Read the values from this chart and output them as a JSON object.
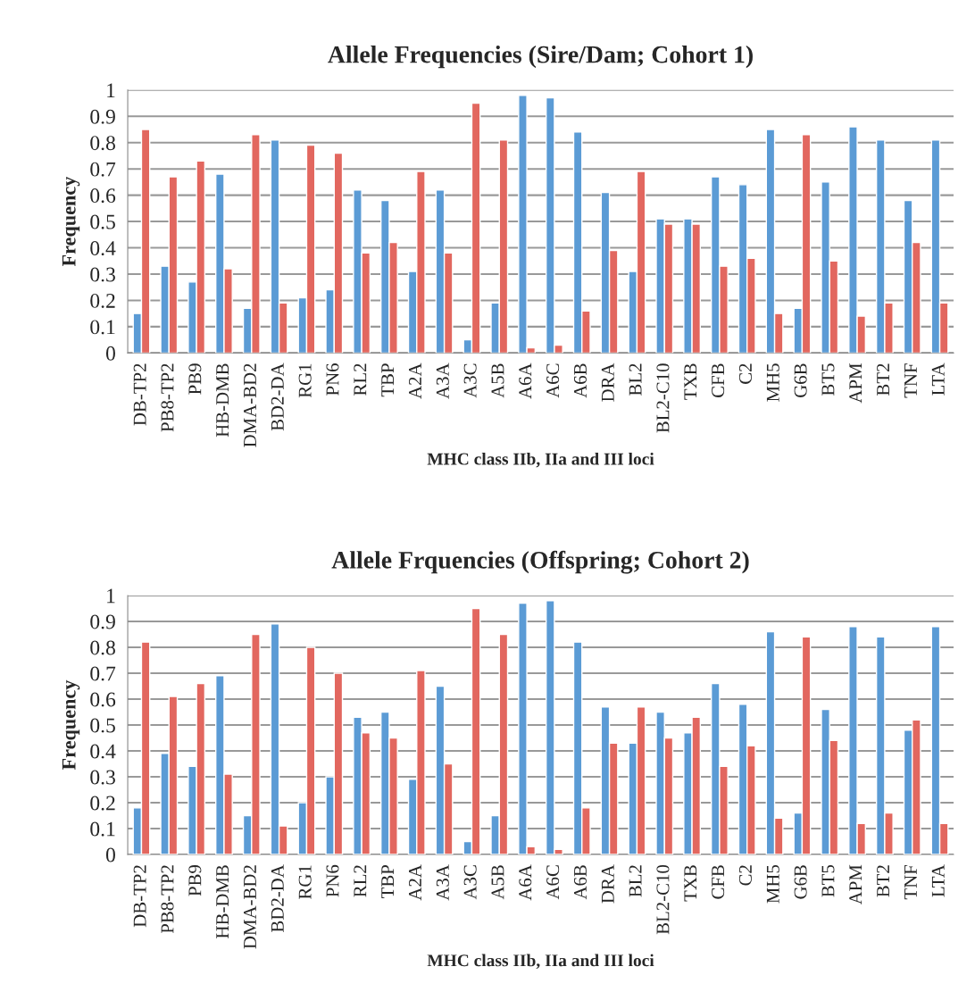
{
  "chart_data": [
    {
      "type": "bar",
      "title": "Allele Frequencies (Sire/Dam; Cohort 1)",
      "xlabel": "MHC class IIb, IIa and III loci",
      "ylabel": "Frequency",
      "categories": [
        "DB-TP2",
        "PB8-TP2",
        "PB9",
        "HB-DMB",
        "DMA-BD2",
        "BD2-DA",
        "RG1",
        "PN6",
        "RL2",
        "TBP",
        "A2A",
        "A3A",
        "A3C",
        "A5B",
        "A6A",
        "A6C",
        "A6B",
        "DRA",
        "BL2",
        "BL2-C10",
        "TXB",
        "CFB",
        "C2",
        "MH5",
        "G6B",
        "BT5",
        "APM",
        "BT2",
        "TNF",
        "LTA"
      ],
      "series": [
        {
          "color": "#5b9bd5",
          "values": [
            0.15,
            0.33,
            0.27,
            0.68,
            0.17,
            0.81,
            0.21,
            0.24,
            0.62,
            0.58,
            0.31,
            0.62,
            0.05,
            0.19,
            0.98,
            0.97,
            0.84,
            0.61,
            0.31,
            0.51,
            0.51,
            0.67,
            0.64,
            0.85,
            0.17,
            0.65,
            0.86,
            0.81,
            0.58,
            0.81
          ]
        },
        {
          "color": "#e2675f",
          "values": [
            0.85,
            0.67,
            0.73,
            0.32,
            0.83,
            0.19,
            0.79,
            0.76,
            0.38,
            0.42,
            0.69,
            0.38,
            0.95,
            0.81,
            0.02,
            0.03,
            0.16,
            0.39,
            0.69,
            0.49,
            0.49,
            0.33,
            0.36,
            0.15,
            0.83,
            0.35,
            0.14,
            0.19,
            0.42,
            0.19
          ]
        }
      ],
      "ylim": [
        0,
        1
      ],
      "yticks": [
        0,
        0.1,
        0.2,
        0.3,
        0.4,
        0.5,
        0.6,
        0.7,
        0.8,
        0.9,
        1
      ],
      "grid": "y"
    },
    {
      "type": "bar",
      "title": "Allele Frquencies (Offspring; Cohort 2)",
      "xlabel": "MHC class IIb, IIa and III loci",
      "ylabel": "Frequency",
      "categories": [
        "DB-TP2",
        "PB8-TP2",
        "PB9",
        "HB-DMB",
        "DMA-BD2",
        "BD2-DA",
        "RG1",
        "PN6",
        "RL2",
        "TBP",
        "A2A",
        "A3A",
        "A3C",
        "A5B",
        "A6A",
        "A6C",
        "A6B",
        "DRA",
        "BL2",
        "BL2-C10",
        "TXB",
        "CFB",
        "C2",
        "MH5",
        "G6B",
        "BT5",
        "APM",
        "BT2",
        "TNF",
        "LTA"
      ],
      "series": [
        {
          "color": "#5b9bd5",
          "values": [
            0.18,
            0.39,
            0.34,
            0.69,
            0.15,
            0.89,
            0.2,
            0.3,
            0.53,
            0.55,
            0.29,
            0.65,
            0.05,
            0.15,
            0.97,
            0.98,
            0.82,
            0.57,
            0.43,
            0.55,
            0.47,
            0.66,
            0.58,
            0.86,
            0.16,
            0.56,
            0.88,
            0.84,
            0.48,
            0.88
          ]
        },
        {
          "color": "#e2675f",
          "values": [
            0.82,
            0.61,
            0.66,
            0.31,
            0.85,
            0.11,
            0.8,
            0.7,
            0.47,
            0.45,
            0.71,
            0.35,
            0.95,
            0.85,
            0.03,
            0.02,
            0.18,
            0.43,
            0.57,
            0.45,
            0.53,
            0.34,
            0.42,
            0.14,
            0.84,
            0.44,
            0.12,
            0.16,
            0.52,
            0.12
          ]
        }
      ],
      "ylim": [
        0,
        1
      ],
      "yticks": [
        0,
        0.1,
        0.2,
        0.3,
        0.4,
        0.5,
        0.6,
        0.7,
        0.8,
        0.9,
        1
      ],
      "grid": "y"
    }
  ]
}
